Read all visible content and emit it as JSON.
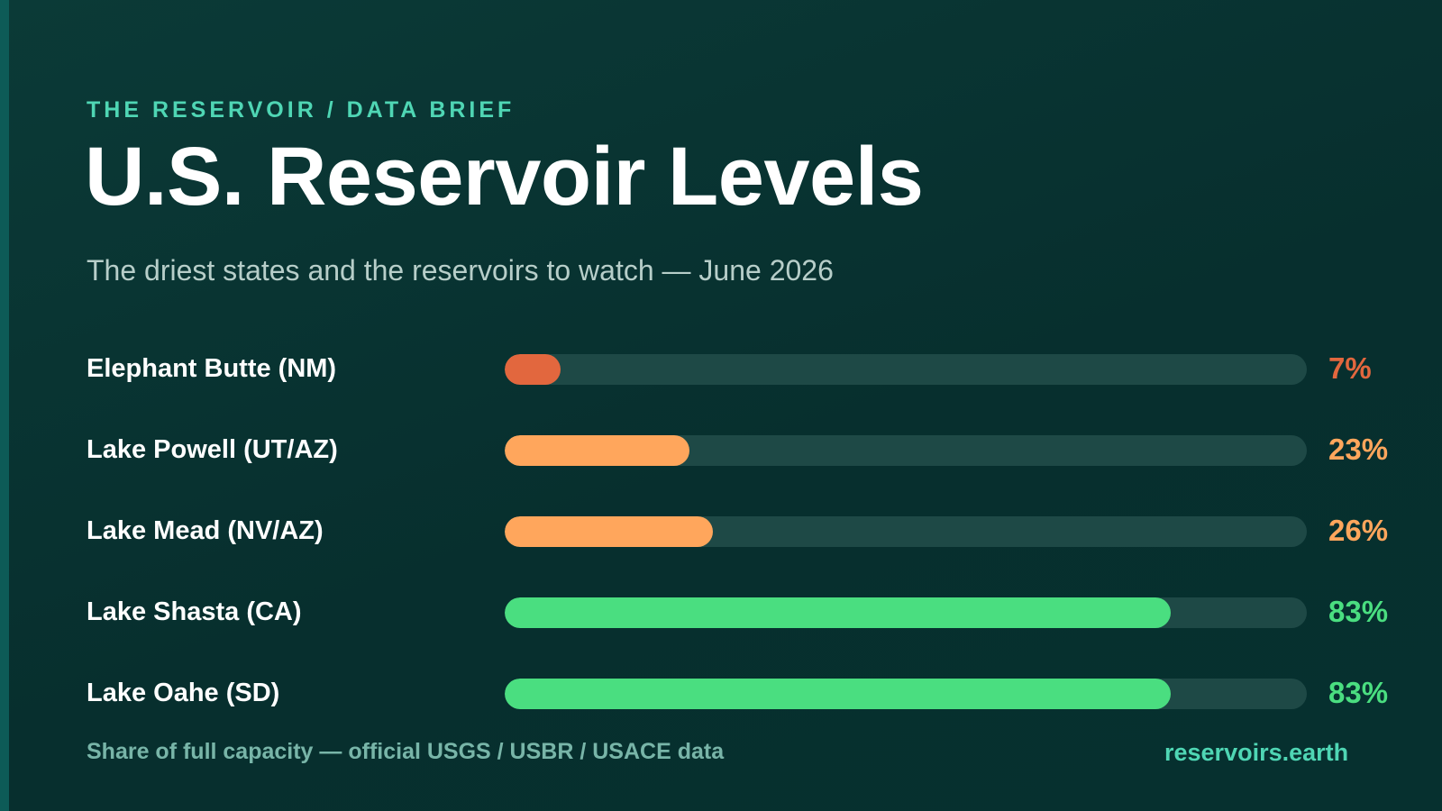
{
  "header": {
    "kicker": "THE RESERVOIR / DATA BRIEF",
    "title": "U.S. Reservoir Levels",
    "subtitle": "The driest states and the reservoirs to watch — June 2026"
  },
  "chart_data": {
    "type": "bar",
    "orientation": "horizontal",
    "title": "U.S. Reservoir Levels",
    "subtitle": "The driest states and the reservoirs to watch — June 2026",
    "categories": [
      "Elephant Butte (NM)",
      "Lake Powell (UT/AZ)",
      "Lake Mead (NV/AZ)",
      "Lake Shasta (CA)",
      "Lake Oahe (SD)"
    ],
    "values": [
      7,
      23,
      26,
      83,
      83
    ],
    "value_labels": [
      "7%",
      "23%",
      "26%",
      "83%",
      "83%"
    ],
    "xlim": [
      0,
      100
    ],
    "unit": "%",
    "colors": [
      "#e2673e",
      "#ffa65c",
      "#ffa65c",
      "#4ade80",
      "#4ade80"
    ],
    "track_color": "#1e4946",
    "grid": false,
    "legend": "none"
  },
  "footer": {
    "note": "Share of full capacity — official USGS / USBR / USACE data",
    "site": "reservoirs.earth"
  }
}
